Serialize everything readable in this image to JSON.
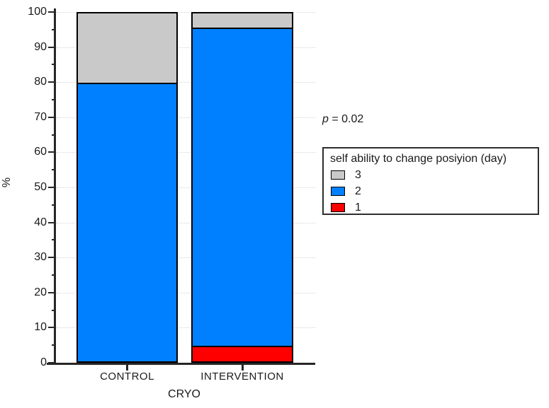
{
  "chart_data": {
    "type": "bar",
    "variant": "stacked-percent",
    "title": "",
    "xlabel": "CRYO",
    "ylabel": "%",
    "ylim": [
      0,
      100
    ],
    "yticks": [
      0,
      10,
      20,
      30,
      40,
      50,
      60,
      70,
      80,
      90,
      100
    ],
    "yticks_minor": [
      5,
      15,
      25,
      35,
      45,
      55,
      65,
      75,
      85,
      95
    ],
    "grid": "horizontal-dotted",
    "categories": [
      "CONTROL",
      "INTERVENTION"
    ],
    "series": [
      {
        "name": "3",
        "color": "#c9c9c9",
        "values": [
          20,
          4
        ]
      },
      {
        "name": "2",
        "color": "#0080fe",
        "values": [
          80,
          92
        ]
      },
      {
        "name": "1",
        "color": "#fe0000",
        "values": [
          0,
          4
        ]
      }
    ],
    "stack_note": "series listed top-to-bottom of stack; legend order matches",
    "legend": {
      "title": "self ability to change posiyion (day)",
      "position": "right",
      "entries": [
        "3",
        "2",
        "1"
      ]
    },
    "annotation": {
      "symbol": "p",
      "text": " = 0.02"
    }
  },
  "colors": {
    "axis": "#262626",
    "gridline": "#d4d4d4",
    "bar_border": "#000000",
    "legend_border": "#2e2e2e",
    "text": "#1a1a1a",
    "background": "#ffffff"
  }
}
